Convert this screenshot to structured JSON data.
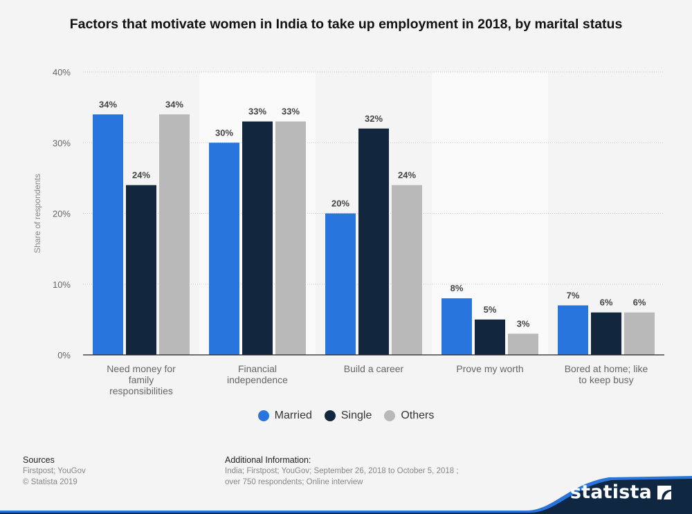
{
  "chart_data": {
    "type": "bar",
    "title": "Factors that motivate women in India to take up employment in 2018, by marital status",
    "xlabel": "",
    "ylabel": "Share of respondents",
    "ylim": [
      0,
      40
    ],
    "yticks": [
      0,
      10,
      20,
      30,
      40
    ],
    "ytick_labels": [
      "0%",
      "10%",
      "20%",
      "30%",
      "40%"
    ],
    "grid": true,
    "legend_position": "bottom-center",
    "categories": [
      [
        "Need money for",
        "family",
        "responsibilities"
      ],
      [
        "Financial",
        "independence"
      ],
      [
        "Build a career"
      ],
      [
        "Prove my worth"
      ],
      [
        "Bored at home; like",
        "to keep busy"
      ]
    ],
    "series": [
      {
        "name": "Married",
        "color": "#2876dd",
        "values": [
          34,
          30,
          20,
          8,
          7
        ],
        "labels": [
          "34%",
          "30%",
          "20%",
          "8%",
          "7%"
        ]
      },
      {
        "name": "Single",
        "color": "#12263d",
        "values": [
          24,
          33,
          32,
          5,
          6
        ],
        "labels": [
          "24%",
          "33%",
          "32%",
          "5%",
          "6%"
        ]
      },
      {
        "name": "Others",
        "color": "#b9b9b9",
        "values": [
          34,
          33,
          24,
          3,
          6
        ],
        "labels": [
          "34%",
          "33%",
          "24%",
          "3%",
          "6%"
        ]
      }
    ]
  },
  "legend": {
    "items": [
      {
        "label": "Married",
        "color": "#2876dd"
      },
      {
        "label": "Single",
        "color": "#12263d"
      },
      {
        "label": "Others",
        "color": "#b9b9b9"
      }
    ]
  },
  "footer": {
    "sources_heading": "Sources",
    "sources_line1": "Firstpost; YouGov",
    "sources_line2": "© Statista 2019",
    "additional_heading": "Additional Information:",
    "additional_line1": "India; Firstpost; YouGov; September 26, 2018 to October 5, 2018 ;",
    "additional_line2": "over 750 respondents; Online interview"
  },
  "brand": {
    "logo_text": "statista",
    "logo_icon": "statista-logo-icon",
    "accent": "#2876dd",
    "dark": "#0f2740"
  }
}
